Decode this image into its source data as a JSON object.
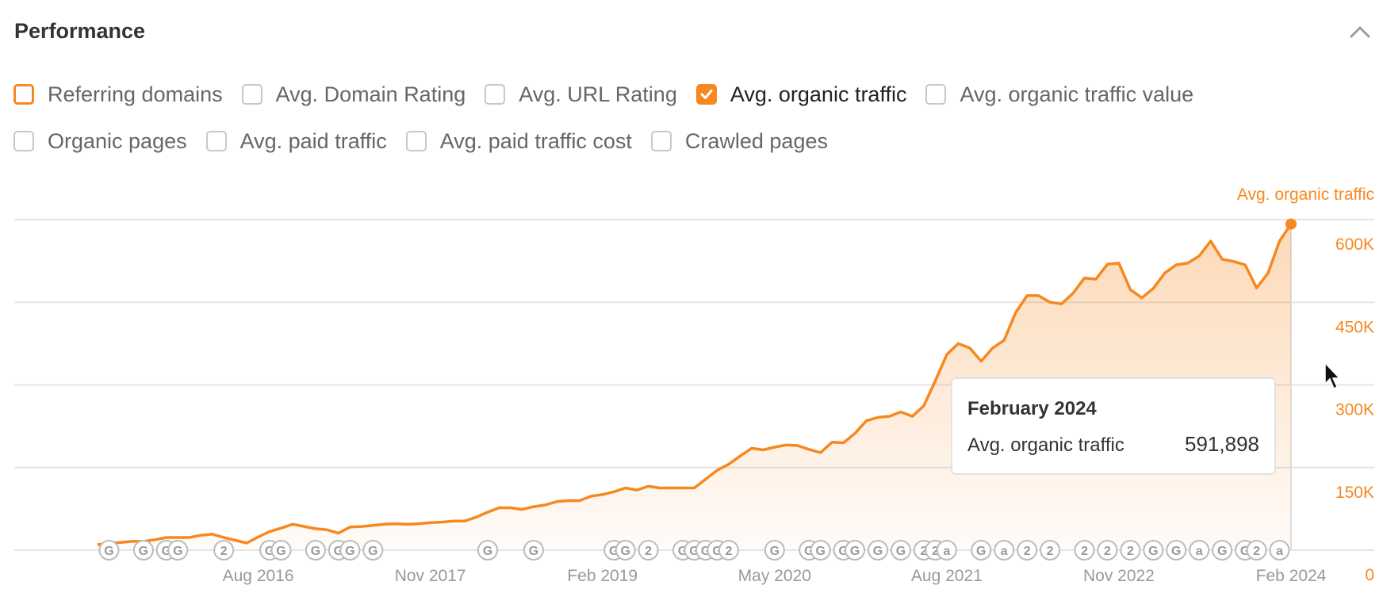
{
  "header": {
    "title": "Performance"
  },
  "checkboxes": [
    {
      "label": "Referring domains",
      "checked": false,
      "highlighted": true
    },
    {
      "label": "Avg. Domain Rating",
      "checked": false
    },
    {
      "label": "Avg. URL Rating",
      "checked": false
    },
    {
      "label": "Avg. organic traffic",
      "checked": true
    },
    {
      "label": "Avg. organic traffic value",
      "checked": false
    },
    {
      "label": "Organic pages",
      "checked": false
    },
    {
      "label": "Avg. paid traffic",
      "checked": false
    },
    {
      "label": "Avg. paid traffic cost",
      "checked": false
    },
    {
      "label": "Crawled pages",
      "checked": false
    }
  ],
  "chart_data": {
    "type": "area",
    "x": [
      "2015-06",
      "2015-07",
      "2015-08",
      "2015-09",
      "2015-10",
      "2015-11",
      "2015-12",
      "2016-01",
      "2016-02",
      "2016-03",
      "2016-04",
      "2016-05",
      "2016-06",
      "2016-07",
      "2016-08",
      "2016-09",
      "2016-10",
      "2016-11",
      "2016-12",
      "2017-01",
      "2017-02",
      "2017-03",
      "2017-04",
      "2017-05",
      "2017-06",
      "2017-07",
      "2017-08",
      "2017-09",
      "2017-10",
      "2017-11",
      "2017-12",
      "2018-01",
      "2018-02",
      "2018-03",
      "2018-04",
      "2018-05",
      "2018-06",
      "2018-07",
      "2018-08",
      "2018-09",
      "2018-10",
      "2018-11",
      "2018-12",
      "2019-01",
      "2019-02",
      "2019-03",
      "2019-04",
      "2019-05",
      "2019-06",
      "2019-07",
      "2019-08",
      "2019-09",
      "2019-10",
      "2019-11",
      "2019-12",
      "2020-01",
      "2020-02",
      "2020-03",
      "2020-04",
      "2020-05",
      "2020-06",
      "2020-07",
      "2020-08",
      "2020-09",
      "2020-10",
      "2020-11",
      "2020-12",
      "2021-01",
      "2021-02",
      "2021-03",
      "2021-04",
      "2021-05",
      "2021-06",
      "2021-07",
      "2021-08",
      "2021-09",
      "2021-10",
      "2021-11",
      "2021-12",
      "2022-01",
      "2022-02",
      "2022-03",
      "2022-04",
      "2022-05",
      "2022-06",
      "2022-07",
      "2022-08",
      "2022-09",
      "2022-10",
      "2022-11",
      "2022-12",
      "2023-01",
      "2023-02",
      "2023-03",
      "2023-04",
      "2023-05",
      "2023-06",
      "2023-07",
      "2023-08",
      "2023-09",
      "2023-10",
      "2023-11",
      "2023-12",
      "2024-01",
      "2024-02"
    ],
    "series": [
      {
        "name": "Avg. organic traffic",
        "color": "#f7881f",
        "values": [
          10000,
          13000,
          14000,
          16000,
          16000,
          19000,
          23000,
          23000,
          23000,
          27000,
          29000,
          23000,
          18000,
          13000,
          24000,
          34000,
          40000,
          47000,
          43000,
          39000,
          37000,
          31000,
          42000,
          43000,
          45000,
          47000,
          48000,
          47000,
          48000,
          50000,
          51000,
          53000,
          53000,
          60000,
          69000,
          77000,
          77000,
          74000,
          79000,
          82000,
          88000,
          90000,
          90000,
          98000,
          101000,
          106000,
          113000,
          109000,
          116000,
          113000,
          113000,
          113000,
          113000,
          129000,
          145000,
          156000,
          171000,
          185000,
          182000,
          187000,
          191000,
          190000,
          183000,
          177000,
          196000,
          195000,
          212000,
          235000,
          241000,
          243000,
          251000,
          243000,
          262000,
          307000,
          355000,
          375000,
          367000,
          343000,
          367000,
          381000,
          431000,
          462000,
          462000,
          450000,
          447000,
          466000,
          494000,
          492000,
          519000,
          521000,
          473000,
          458000,
          475000,
          503000,
          518000,
          521000,
          534000,
          561000,
          528000,
          524000,
          518000,
          476000,
          503000,
          561000,
          591898
        ]
      }
    ],
    "ylim": [
      0,
      600000
    ],
    "yticks": [
      0,
      {
        "value": 150000,
        "label": "150K"
      },
      {
        "value": 300000,
        "label": "300K"
      },
      {
        "value": 450000,
        "label": "450K"
      },
      {
        "value": 600000,
        "label": "600K"
      }
    ],
    "xticks": [
      {
        "value": "2016-08",
        "label": "Aug 2016"
      },
      {
        "value": "2017-11",
        "label": "Nov 2017"
      },
      {
        "value": "2019-02",
        "label": "Feb 2019"
      },
      {
        "value": "2020-05",
        "label": "May 2020"
      },
      {
        "value": "2021-08",
        "label": "Aug 2021"
      },
      {
        "value": "2022-11",
        "label": "Nov 2022"
      },
      {
        "value": "2024-02",
        "label": "Feb 2024"
      }
    ],
    "grid": true,
    "events": [
      {
        "x": "2015-07",
        "label": "G"
      },
      {
        "x": "2015-10",
        "label": "G"
      },
      {
        "x": "2015-12",
        "label": "G"
      },
      {
        "x": "2016-01",
        "label": "G"
      },
      {
        "x": "2016-05",
        "label": "2"
      },
      {
        "x": "2016-09",
        "label": "G"
      },
      {
        "x": "2016-10",
        "label": "G"
      },
      {
        "x": "2017-01",
        "label": "G"
      },
      {
        "x": "2017-03",
        "label": "G"
      },
      {
        "x": "2017-04",
        "label": "G"
      },
      {
        "x": "2017-06",
        "label": "G"
      },
      {
        "x": "2018-04",
        "label": "G"
      },
      {
        "x": "2018-08",
        "label": "G"
      },
      {
        "x": "2019-03",
        "label": "G"
      },
      {
        "x": "2019-04",
        "label": "G"
      },
      {
        "x": "2019-06",
        "label": "2"
      },
      {
        "x": "2019-09",
        "label": "G"
      },
      {
        "x": "2019-10",
        "label": "G"
      },
      {
        "x": "2019-11",
        "label": "G"
      },
      {
        "x": "2019-12",
        "label": "G"
      },
      {
        "x": "2020-01",
        "label": "2"
      },
      {
        "x": "2020-05",
        "label": "G"
      },
      {
        "x": "2020-08",
        "label": "G"
      },
      {
        "x": "2020-09",
        "label": "G"
      },
      {
        "x": "2020-11",
        "label": "G"
      },
      {
        "x": "2020-12",
        "label": "G"
      },
      {
        "x": "2021-02",
        "label": "G"
      },
      {
        "x": "2021-04",
        "label": "G"
      },
      {
        "x": "2021-06",
        "label": "2"
      },
      {
        "x": "2021-07",
        "label": "2"
      },
      {
        "x": "2021-08",
        "label": "a"
      },
      {
        "x": "2021-11",
        "label": "G"
      },
      {
        "x": "2022-01",
        "label": "a"
      },
      {
        "x": "2022-03",
        "label": "2"
      },
      {
        "x": "2022-05",
        "label": "2"
      },
      {
        "x": "2022-08",
        "label": "2"
      },
      {
        "x": "2022-10",
        "label": "2"
      },
      {
        "x": "2022-12",
        "label": "2"
      },
      {
        "x": "2023-02",
        "label": "G"
      },
      {
        "x": "2023-04",
        "label": "G"
      },
      {
        "x": "2023-06",
        "label": "a"
      },
      {
        "x": "2023-08",
        "label": "G"
      },
      {
        "x": "2023-10",
        "label": "G"
      },
      {
        "x": "2023-11",
        "label": "2"
      },
      {
        "x": "2024-01",
        "label": "a"
      }
    ],
    "tooltip": {
      "title": "February 2024",
      "value_label": "591,898"
    }
  }
}
